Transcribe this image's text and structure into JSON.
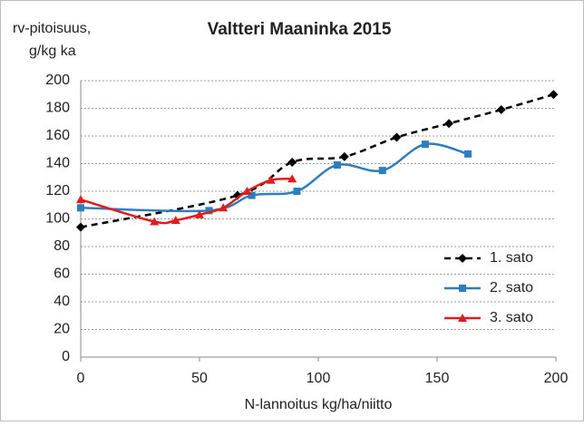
{
  "chart_data": {
    "type": "line",
    "title": "Valtteri Maaninka 2015",
    "y_label": [
      "rv-pitoisuus,",
      "g/kg ka"
    ],
    "x_label": "N-lannoitus kg/ha/niitto",
    "xlim": [
      0,
      200
    ],
    "xticks": [
      0,
      50,
      100,
      150,
      200
    ],
    "ylim": [
      0,
      200
    ],
    "yticks": [
      0,
      20,
      40,
      60,
      80,
      100,
      120,
      140,
      160,
      180,
      200
    ],
    "grid": true,
    "smooth": true,
    "legend": "lower right",
    "series": [
      {
        "name": "1. sato",
        "color": "#000000",
        "linestyle": "dashed",
        "marker": "diamond",
        "x": [
          0,
          66,
          89,
          111,
          133,
          155,
          177,
          199
        ],
        "values": [
          94,
          117,
          141,
          145,
          159,
          169,
          179,
          190
        ]
      },
      {
        "name": "2. sato",
        "color": "#2e7dbf",
        "linestyle": "solid",
        "marker": "square",
        "x": [
          0,
          54,
          72,
          91,
          108,
          127,
          145,
          163
        ],
        "values": [
          108,
          106,
          117,
          120,
          139,
          135,
          154,
          147
        ]
      },
      {
        "name": "3. sato",
        "color": "#e21b1b",
        "linestyle": "solid",
        "marker": "triangle",
        "x": [
          0,
          31,
          40,
          50,
          60,
          70,
          80,
          89
        ],
        "values": [
          114,
          98,
          99,
          103,
          108,
          120,
          128,
          129
        ]
      }
    ]
  }
}
